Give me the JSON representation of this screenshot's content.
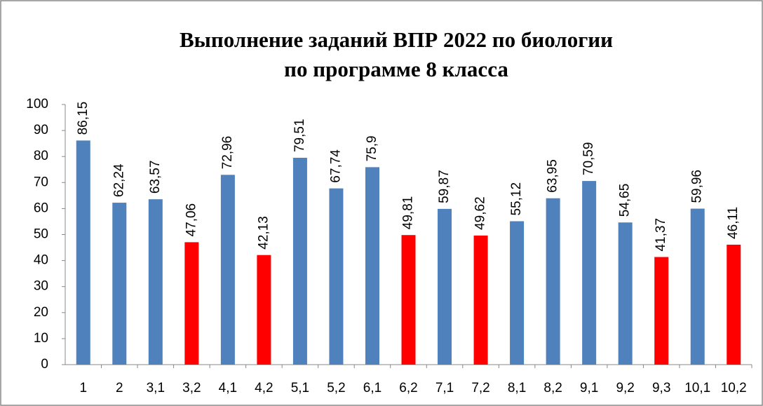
{
  "chart_data": {
    "type": "bar",
    "title": [
      "Выполнение заданий ВПР 2022 по биологии",
      "по программе 8 класса"
    ],
    "categories": [
      "1",
      "2",
      "3,1",
      "3,2",
      "4,1",
      "4,2",
      "5,1",
      "5,2",
      "6,1",
      "6,2",
      "7,1",
      "7,2",
      "8,1",
      "8,2",
      "9,1",
      "9,2",
      "9,3",
      "10,1",
      "10,2"
    ],
    "values": [
      86.15,
      62.24,
      63.57,
      47.06,
      72.96,
      42.13,
      79.51,
      67.74,
      75.9,
      49.81,
      59.87,
      49.62,
      55.12,
      63.95,
      70.59,
      54.65,
      41.37,
      59.96,
      46.11
    ],
    "value_labels": [
      "86,15",
      "62,24",
      "63,57",
      "47,06",
      "72,96",
      "42,13",
      "79,51",
      "67,74",
      "75,9",
      "49,81",
      "59,87",
      "49,62",
      "55,12",
      "63,95",
      "70,59",
      "54,65",
      "41,37",
      "59,96",
      "46,11"
    ],
    "colors": [
      "#4f81bd",
      "#4f81bd",
      "#4f81bd",
      "#ff0000",
      "#4f81bd",
      "#ff0000",
      "#4f81bd",
      "#4f81bd",
      "#4f81bd",
      "#ff0000",
      "#4f81bd",
      "#ff0000",
      "#4f81bd",
      "#4f81bd",
      "#4f81bd",
      "#4f81bd",
      "#ff0000",
      "#4f81bd",
      "#ff0000"
    ],
    "ylim": [
      0,
      100
    ],
    "yticks": [
      0,
      10,
      20,
      30,
      40,
      50,
      60,
      70,
      80,
      90,
      100
    ],
    "grid": false
  }
}
